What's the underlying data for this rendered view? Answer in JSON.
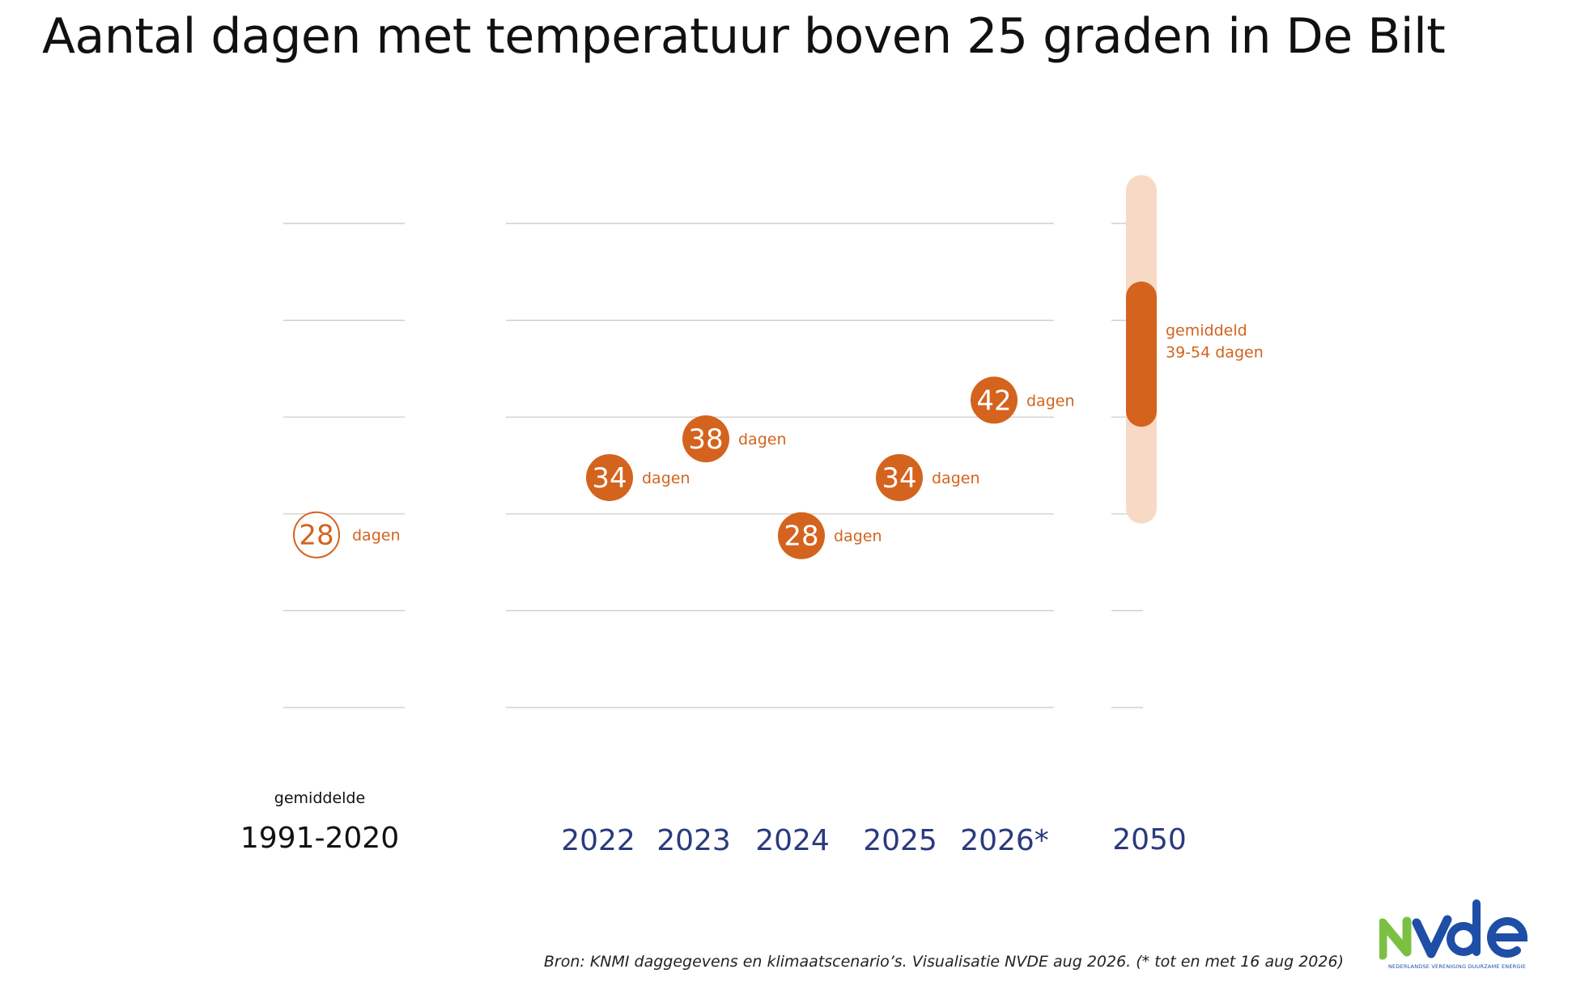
{
  "title": "Aantal dagen met temperatuur boven 25 graden in De Bilt",
  "source": "Bron: KNMI daggegevens en klimaatscenario’s. Visualisatie NVDE aug 2026. (* tot en met 16 aug 2026)",
  "colors": {
    "accent": "#d4631e",
    "projection_light": "#f8d9c6",
    "year_label": "#2a3a7e",
    "baseline_label": "#111111",
    "grid": "#c8c8c8"
  },
  "logo": {
    "tagline": "NEDERLANDSE VERENIGING DUURZAME ENERGIE",
    "icon": "nvde-logo"
  },
  "chart_data": {
    "type": "scatter",
    "title": "Aantal dagen met temperatuur boven 25 graden in De Bilt",
    "unit": "dagen",
    "ylim": [
      10,
      60
    ],
    "grid": true,
    "baseline": {
      "caption": "gemiddelde",
      "label": "1991-2020",
      "value": 28,
      "value_label": "28",
      "unit_label": "dagen"
    },
    "years": [
      {
        "label": "2022",
        "value": 34,
        "value_label": "34",
        "unit_label": "dagen"
      },
      {
        "label": "2023",
        "value": 38,
        "value_label": "38",
        "unit_label": "dagen"
      },
      {
        "label": "2024",
        "value": 28,
        "value_label": "28",
        "unit_label": "dagen"
      },
      {
        "label": "2025",
        "value": 34,
        "value_label": "34",
        "unit_label": "dagen"
      },
      {
        "label": "2026*",
        "value": 42,
        "value_label": "42",
        "unit_label": "dagen"
      }
    ],
    "projection": {
      "label": "2050",
      "range_outer": [
        29,
        65
      ],
      "range_average": [
        39,
        54
      ],
      "annotation_line1": "gemiddeld",
      "annotation_line2": "39-54 dagen"
    }
  }
}
